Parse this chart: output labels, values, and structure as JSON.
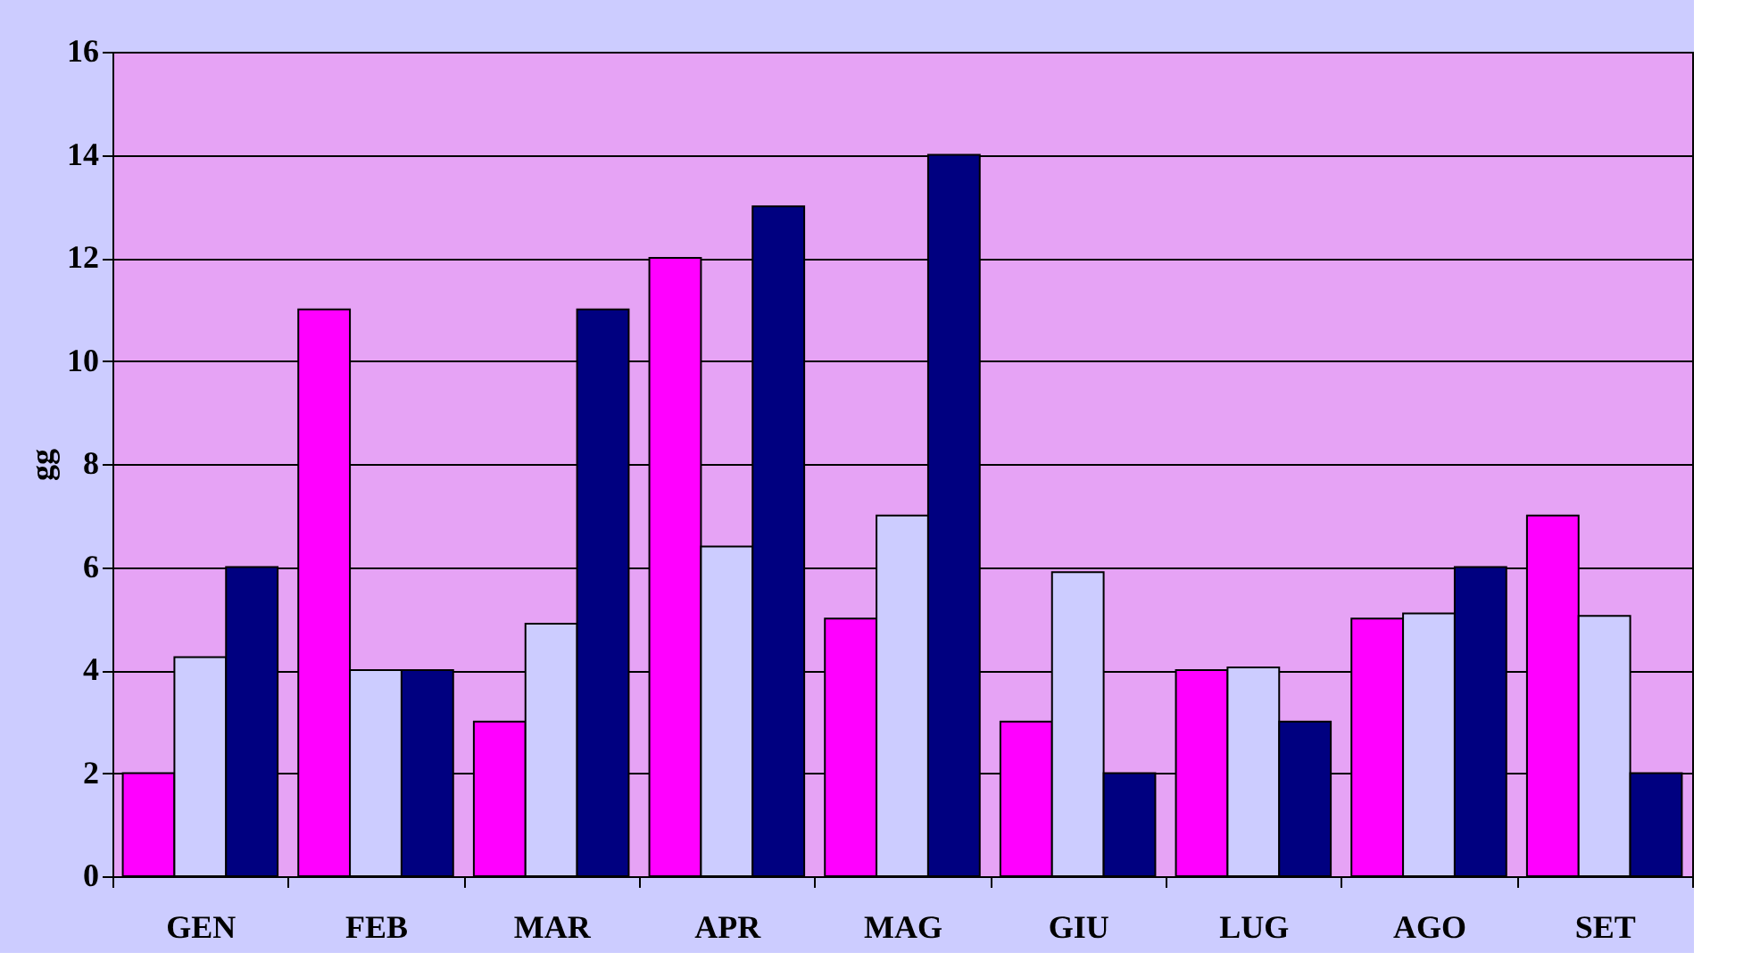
{
  "chart_data": {
    "type": "bar",
    "ylabel": "gg",
    "categories": [
      "GEN",
      "FEB",
      "MAR",
      "APR",
      "MAG",
      "GIU",
      "LUG",
      "AGO",
      "SET"
    ],
    "series": [
      {
        "color": "#ff00ff",
        "values": [
          2,
          11,
          3,
          12,
          5,
          3,
          4,
          5,
          7
        ]
      },
      {
        "color": "#ccccff",
        "values": [
          4.25,
          4,
          4.9,
          6.4,
          7,
          5.9,
          4.05,
          5.1,
          5.05
        ]
      },
      {
        "color": "#000080",
        "values": [
          6,
          4,
          11,
          13,
          14,
          2,
          3,
          6,
          2
        ]
      }
    ],
    "ylim": [
      0,
      16
    ],
    "yticks": [
      0,
      2,
      4,
      6,
      8,
      10,
      12,
      14,
      16
    ],
    "grid": "y",
    "legend": false
  }
}
